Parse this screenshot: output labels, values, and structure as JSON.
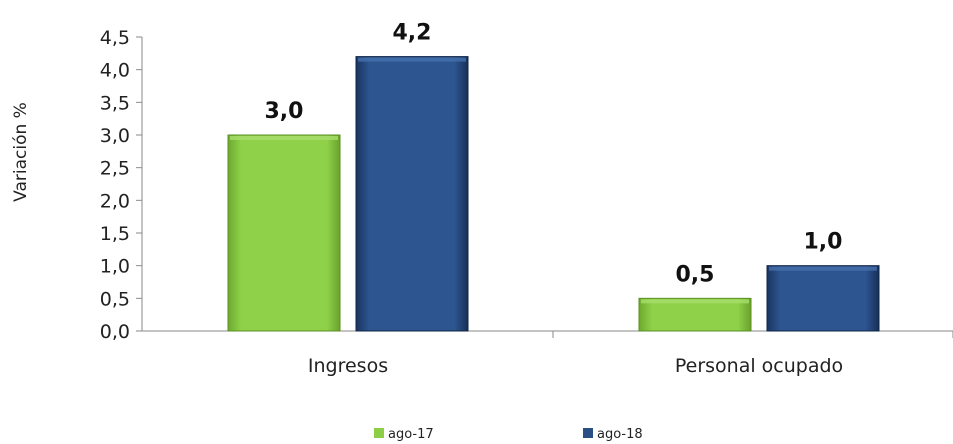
{
  "chart_data": {
    "type": "bar",
    "categories": [
      "Ingresos",
      "Personal ocupado"
    ],
    "series": [
      {
        "name": "ago-17",
        "values": [
          3.0,
          0.5
        ],
        "color": "#8ccf47",
        "labels": [
          "3,0",
          "0,5"
        ]
      },
      {
        "name": "ago-18",
        "values": [
          4.2,
          1.0
        ],
        "color": "#2a4f86",
        "labels": [
          "4,2",
          "1,0"
        ]
      }
    ],
    "ylabel": "Variación %",
    "ylim": [
      0,
      4.5
    ],
    "yticks": [
      "0,0",
      "0,5",
      "1,0",
      "1,5",
      "2,0",
      "2,5",
      "3,0",
      "3,5",
      "4,0",
      "4,5"
    ],
    "grid": false,
    "legend_position": "bottom"
  }
}
